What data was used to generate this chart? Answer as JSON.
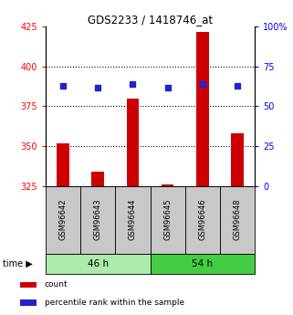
{
  "title": "GDS2233 / 1418746_at",
  "samples": [
    "GSM96642",
    "GSM96643",
    "GSM96644",
    "GSM96645",
    "GSM96646",
    "GSM96648"
  ],
  "groups": [
    {
      "label": "46 h",
      "indices": [
        0,
        1,
        2
      ],
      "color": "#AAEAAA"
    },
    {
      "label": "54 h",
      "indices": [
        3,
        4,
        5
      ],
      "color": "#44CC44"
    }
  ],
  "count_values": [
    352,
    334,
    380,
    326,
    422,
    358
  ],
  "count_baseline": 325,
  "percentile_values": [
    63,
    62,
    64,
    62,
    64,
    63
  ],
  "left_ylim": [
    325,
    425
  ],
  "right_ylim": [
    0,
    100
  ],
  "left_yticks": [
    325,
    350,
    375,
    400,
    425
  ],
  "right_yticks": [
    0,
    25,
    50,
    75,
    100
  ],
  "right_yticklabels": [
    "0",
    "25",
    "50",
    "75",
    "100%"
  ],
  "dotted_lines": [
    350,
    375,
    400
  ],
  "bar_color": "#CC0000",
  "dot_color": "#2222CC",
  "bar_width": 0.35,
  "background_color": "#ffffff",
  "sample_box_color": "#C8C8C8",
  "legend_items": [
    {
      "label": "count",
      "color": "#CC0000"
    },
    {
      "label": "percentile rank within the sample",
      "color": "#2222CC"
    }
  ]
}
